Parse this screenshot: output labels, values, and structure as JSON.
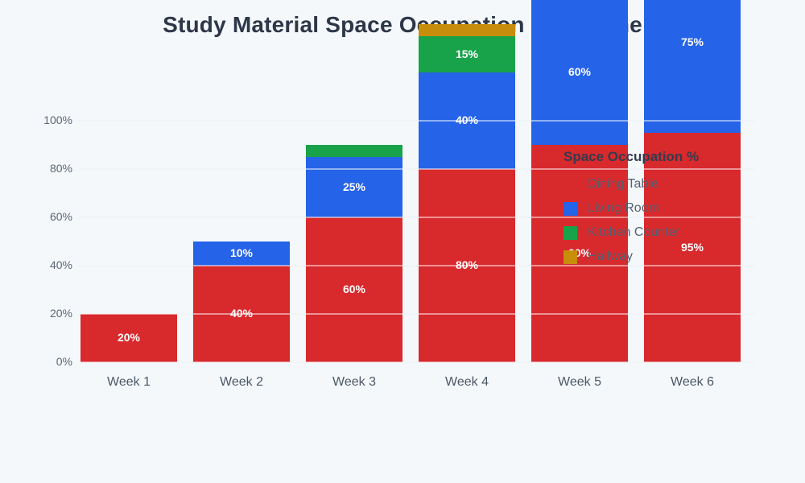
{
  "title": "Study Material Space Occupation Over Time",
  "colors": {
    "background": "#f4f8fb",
    "title_text": "#2d3748",
    "axis_text": "#5b6575",
    "gridline": "#e3e9ef",
    "bar_label_text": "#ffffff"
  },
  "chart_data": {
    "type": "bar",
    "subtype": "stacked-vertical",
    "title": "Study Material Space Occupation Over Time",
    "categories": [
      "Week 1",
      "Week 2",
      "Week 3",
      "Week 4",
      "Week 5",
      "Week 6"
    ],
    "series": [
      {
        "name": "Dining Table",
        "color": "#d8292d",
        "values": [
          20,
          40,
          60,
          80,
          90,
          95
        ]
      },
      {
        "name": "Living Room",
        "color": "#2563e8",
        "values": [
          0,
          10,
          25,
          40,
          60,
          75
        ]
      },
      {
        "name": "Kitchen Counter",
        "color": "#18a34a",
        "values": [
          0,
          0,
          5,
          15,
          0,
          0
        ]
      },
      {
        "name": "Hallway",
        "color": "#c88d0a",
        "values": [
          0,
          0,
          0,
          5,
          0,
          0
        ]
      }
    ],
    "stack_totals": [
      20,
      50,
      90,
      140,
      150,
      170
    ],
    "xlabel": "",
    "ylabel": "",
    "y_axis": {
      "min": 0,
      "max": 100,
      "step": 20,
      "unit": "%",
      "tick_labels": [
        "0%",
        "20%",
        "40%",
        "60%",
        "80%",
        "100%"
      ]
    },
    "grid": true,
    "bars_overflow_plot_top": true,
    "value_label_format": "{value}%",
    "value_label_min_segment": 10,
    "legend": {
      "title": "Space Occupation %",
      "position": "overlay-right",
      "items": [
        "Dining Table",
        "Living Room",
        "Kitchen Counter",
        "Hallway"
      ]
    }
  }
}
